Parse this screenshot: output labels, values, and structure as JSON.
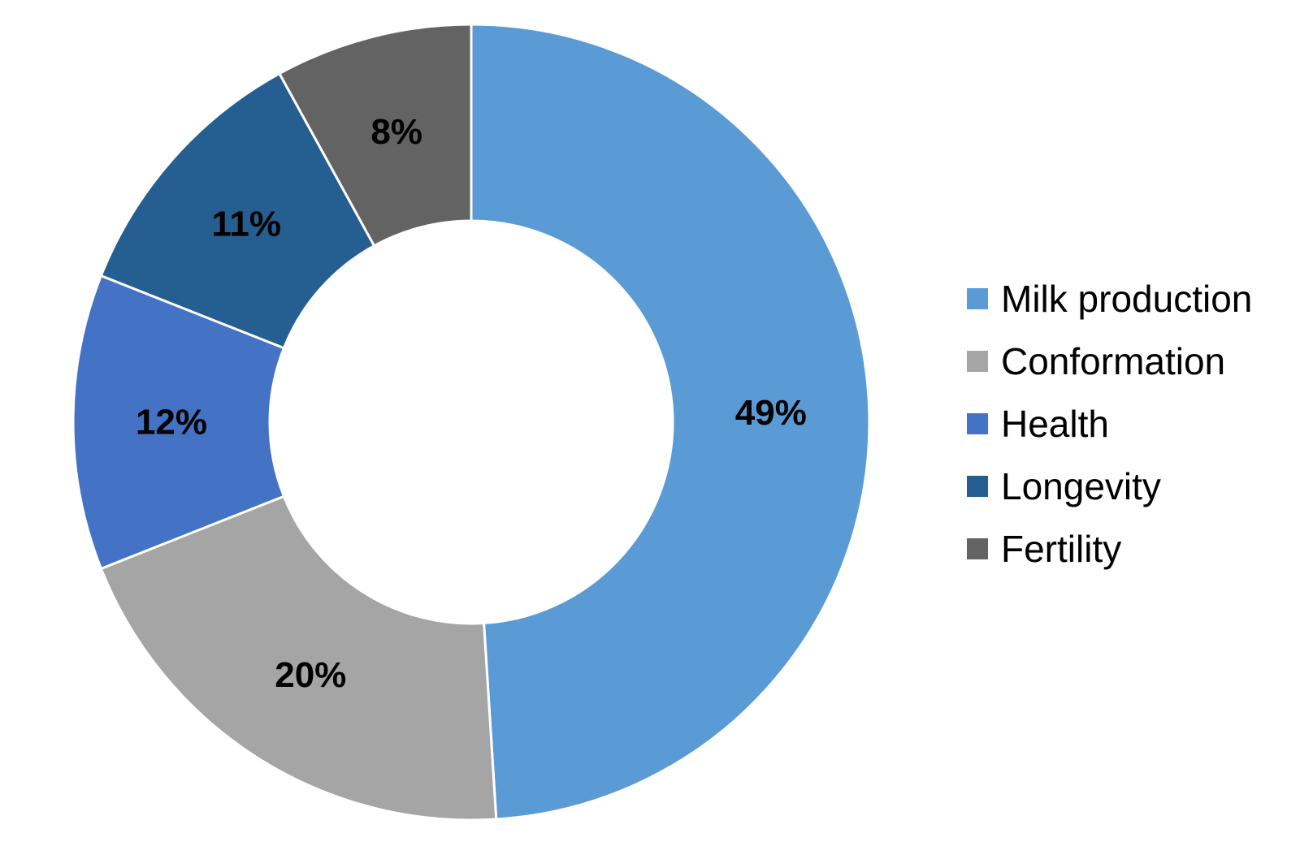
{
  "chart_data": {
    "type": "pie",
    "variant": "donut",
    "title": "",
    "legend_position": "right",
    "categories": [
      "Milk production",
      "Conformation",
      "Health",
      "Longevity",
      "Fertility"
    ],
    "values": [
      49,
      20,
      12,
      11,
      8
    ],
    "labels": [
      "49%",
      "20%",
      "12%",
      "11%",
      "8%"
    ],
    "colors": [
      "#5b9bd5",
      "#a5a5a5",
      "#4472c4",
      "#255e91",
      "#636363"
    ]
  }
}
